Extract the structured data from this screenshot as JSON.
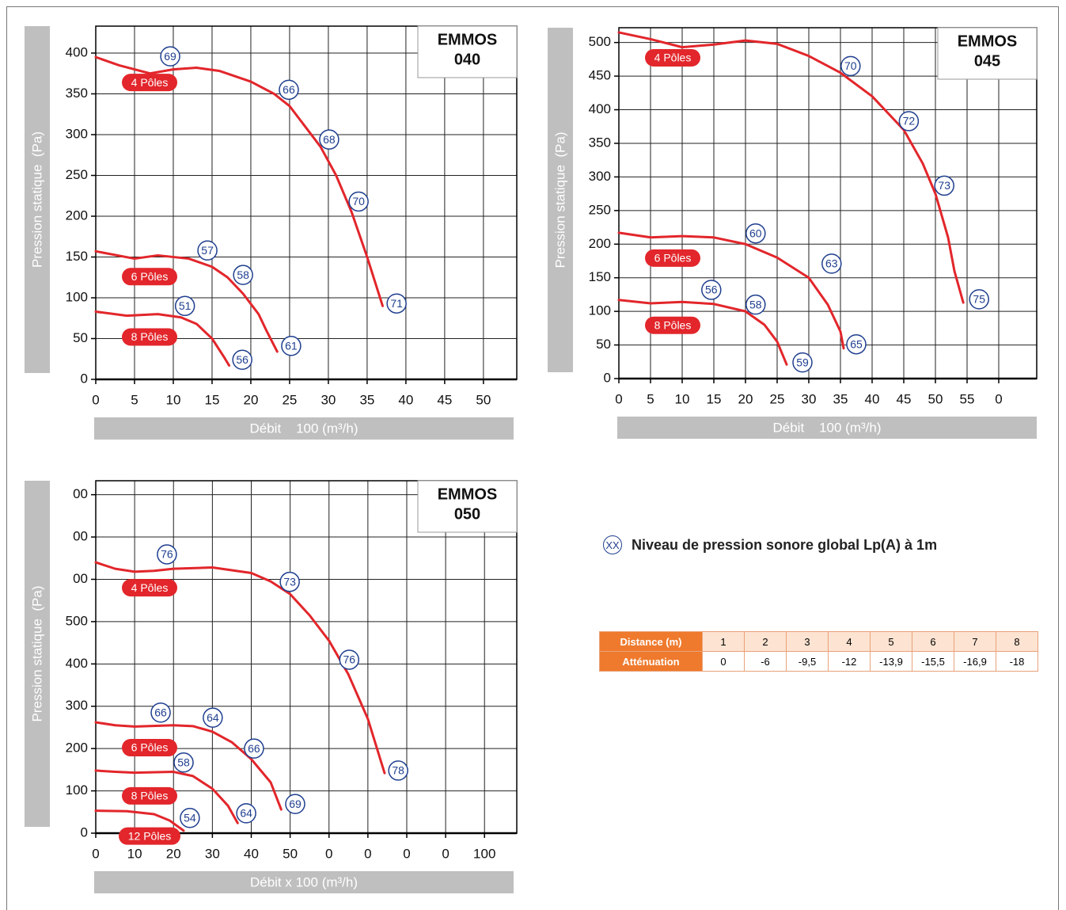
{
  "chart_data": [
    {
      "type": "line",
      "title_lines": [
        "EMMOS",
        "040"
      ],
      "xlabel": "Débit    100 (m³/h)",
      "ylabel": "Pression statique  (Pa)",
      "xlim": [
        0,
        54.3
      ],
      "ylim": [
        0,
        433
      ],
      "xticks": [
        0,
        5,
        10,
        15,
        20,
        25,
        30,
        35,
        40,
        45,
        50
      ],
      "yticks": [
        0,
        50,
        100,
        150,
        200,
        250,
        300,
        350,
        400
      ],
      "grid": true,
      "series": [
        {
          "name": "4 Pôles",
          "color": "#e2262b",
          "x": [
            0,
            3,
            7,
            10,
            13,
            16,
            20,
            23,
            25,
            27,
            29,
            31,
            33,
            35,
            37
          ],
          "values": [
            395,
            385,
            375,
            380,
            382,
            378,
            365,
            350,
            335,
            310,
            285,
            250,
            205,
            150,
            90
          ]
        },
        {
          "name": "6 Pôles",
          "color": "#e2262b",
          "x": [
            0,
            5,
            8,
            12,
            15,
            17,
            19,
            21,
            22,
            23.4
          ],
          "values": [
            157,
            148,
            152,
            148,
            138,
            125,
            105,
            80,
            60,
            34
          ]
        },
        {
          "name": "8 Pôles",
          "color": "#e2262b",
          "x": [
            0,
            4,
            8,
            11,
            13,
            15,
            16.5,
            17.2
          ],
          "values": [
            83,
            78,
            80,
            76,
            68,
            50,
            28,
            17
          ]
        }
      ],
      "sound_levels": [
        {
          "x": 9.6,
          "y": 396,
          "value": 69
        },
        {
          "x": 24.9,
          "y": 355,
          "value": 66
        },
        {
          "x": 30.1,
          "y": 294,
          "value": 68
        },
        {
          "x": 33.9,
          "y": 218,
          "value": 70
        },
        {
          "x": 38.8,
          "y": 93,
          "value": 71
        },
        {
          "x": 14.4,
          "y": 158,
          "value": 57
        },
        {
          "x": 19,
          "y": 128,
          "value": 58
        },
        {
          "x": 25.2,
          "y": 41,
          "value": 61
        },
        {
          "x": 11.5,
          "y": 90,
          "value": 51
        },
        {
          "x": 18.9,
          "y": 24,
          "value": 56
        }
      ]
    },
    {
      "type": "line",
      "title_lines": [
        "EMMOS",
        "045"
      ],
      "xlabel": "Débit    100 (m³/h)",
      "ylabel": "Pression statique  (Pa)",
      "xlim": [
        0,
        66
      ],
      "ylim": [
        0,
        522
      ],
      "xticks": [
        0,
        5,
        10,
        15,
        20,
        25,
        30,
        35,
        40,
        45,
        50,
        55,
        {
          "value": 60,
          "label": "0"
        }
      ],
      "yticks": [
        0,
        50,
        100,
        150,
        200,
        250,
        300,
        350,
        400,
        450,
        500
      ],
      "grid": true,
      "series": [
        {
          "name": "4 Pôles",
          "color": "#e2262b",
          "x": [
            0,
            5,
            10,
            15,
            20,
            25,
            30,
            35,
            40,
            45,
            48,
            50,
            52,
            53,
            54.4
          ],
          "values": [
            515,
            505,
            493,
            497,
            503,
            498,
            480,
            455,
            420,
            370,
            320,
            275,
            210,
            160,
            113
          ]
        },
        {
          "name": "6 Pôles",
          "color": "#e2262b",
          "x": [
            0,
            5,
            10,
            15,
            20,
            25,
            30,
            33,
            35,
            35.5
          ],
          "values": [
            217,
            210,
            212,
            210,
            200,
            180,
            150,
            110,
            70,
            45
          ]
        },
        {
          "name": "8 Pôles",
          "color": "#e2262b",
          "x": [
            0,
            5,
            10,
            15,
            20,
            23,
            25,
            26.5
          ],
          "values": [
            117,
            112,
            114,
            111,
            100,
            80,
            55,
            21
          ]
        }
      ],
      "sound_levels": [
        {
          "x": 36.6,
          "y": 465,
          "value": 70
        },
        {
          "x": 45.8,
          "y": 383,
          "value": 72
        },
        {
          "x": 51.4,
          "y": 287,
          "value": 73
        },
        {
          "x": 56.9,
          "y": 118,
          "value": 75
        },
        {
          "x": 21.6,
          "y": 216,
          "value": 60
        },
        {
          "x": 33.6,
          "y": 171,
          "value": 63
        },
        {
          "x": 37.5,
          "y": 51,
          "value": 65
        },
        {
          "x": 14.6,
          "y": 132,
          "value": 56
        },
        {
          "x": 21.6,
          "y": 110,
          "value": 58
        },
        {
          "x": 29,
          "y": 24,
          "value": 59
        }
      ]
    },
    {
      "type": "line",
      "title_lines": [
        "EMMOS",
        "050"
      ],
      "xlabel": "Débit x 100 (m³/h)",
      "ylabel": "Pression statique  (Pa)",
      "xlim": [
        0,
        108.3
      ],
      "ylim": [
        0,
        833
      ],
      "xticks": [
        0,
        10,
        20,
        30,
        40,
        50,
        {
          "value": 60,
          "label": "0"
        },
        {
          "value": 70,
          "label": "0"
        },
        {
          "value": 80,
          "label": "0"
        },
        {
          "value": 90,
          "label": "0"
        },
        100
      ],
      "yticks": [
        0,
        100,
        200,
        300,
        400,
        500,
        {
          "value": 600,
          "label": "00"
        },
        {
          "value": 700,
          "label": "00"
        },
        {
          "value": 800,
          "label": "00"
        }
      ],
      "grid": true,
      "series": [
        {
          "name": "4 Pôles",
          "color": "#e2262b",
          "x": [
            0,
            5,
            10,
            15,
            20,
            30,
            40,
            45,
            50,
            55,
            60,
            65,
            70,
            74.3
          ],
          "values": [
            640,
            625,
            618,
            620,
            625,
            628,
            615,
            595,
            565,
            515,
            455,
            375,
            270,
            142
          ]
        },
        {
          "name": "6 Pôles",
          "color": "#e2262b",
          "x": [
            0,
            5,
            10,
            20,
            25,
            30,
            35,
            40,
            45,
            47.7
          ],
          "values": [
            262,
            255,
            252,
            255,
            253,
            240,
            215,
            175,
            120,
            56
          ]
        },
        {
          "name": "8 Pôles",
          "color": "#e2262b",
          "x": [
            0,
            5,
            10,
            20,
            25,
            30,
            34,
            36.5
          ],
          "values": [
            148,
            145,
            143,
            145,
            135,
            105,
            65,
            24
          ]
        },
        {
          "name": "12 Pôles",
          "color": "#e2262b",
          "x": [
            0,
            8,
            15,
            19,
            22.6
          ],
          "values": [
            53,
            52,
            45,
            30,
            6
          ]
        }
      ],
      "sound_levels": [
        {
          "x": 18.3,
          "y": 659,
          "value": 76
        },
        {
          "x": 49.9,
          "y": 594,
          "value": 73
        },
        {
          "x": 65.2,
          "y": 410,
          "value": 76
        },
        {
          "x": 77.8,
          "y": 148,
          "value": 78
        },
        {
          "x": 16.7,
          "y": 285,
          "value": 66
        },
        {
          "x": 30.1,
          "y": 273,
          "value": 64
        },
        {
          "x": 40.7,
          "y": 200,
          "value": 66
        },
        {
          "x": 51.3,
          "y": 69,
          "value": 69
        },
        {
          "x": 22.6,
          "y": 167,
          "value": 58
        },
        {
          "x": 38.7,
          "y": 47,
          "value": 64
        },
        {
          "x": 24.2,
          "y": 36,
          "value": 54
        }
      ]
    }
  ],
  "note": {
    "symbol": "XX",
    "text": "Niveau de pression sonore global  Lp(A) à 1m"
  },
  "table": {
    "rows": [
      [
        "Distance (m)",
        "1",
        "2",
        "3",
        "4",
        "5",
        "6",
        "7",
        "8"
      ],
      [
        "Atténuation",
        "0",
        "-6",
        "-9,5",
        "-12",
        "-13,9",
        "-15,5",
        "-16,9",
        "-18"
      ]
    ]
  }
}
